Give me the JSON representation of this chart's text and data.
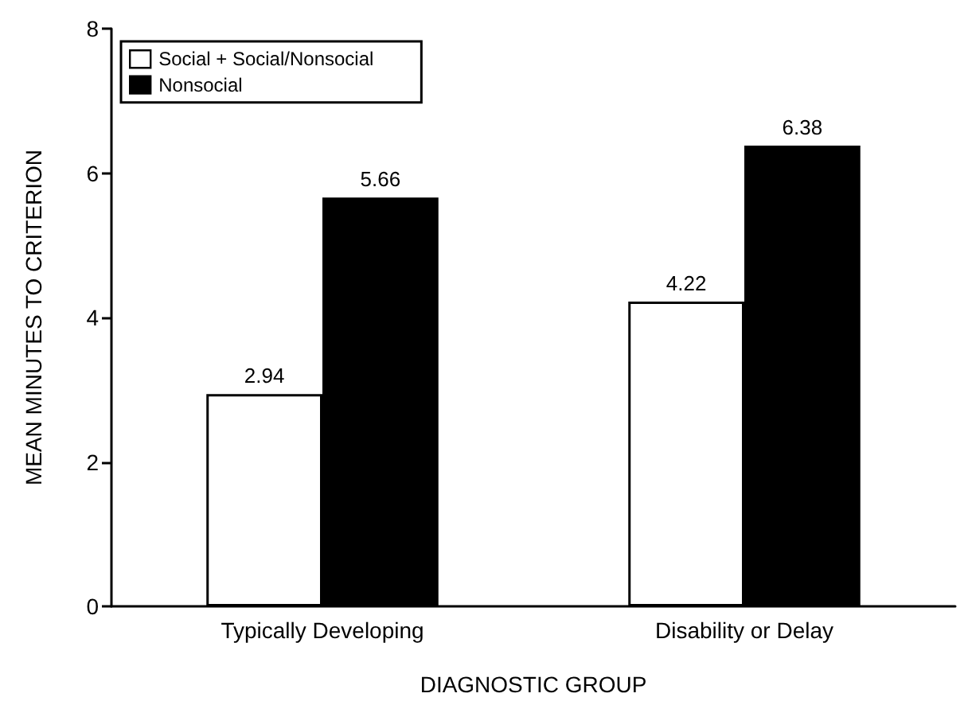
{
  "chart_data": {
    "type": "bar",
    "xlabel": "DIAGNOSTIC GROUP",
    "ylabel": "MEAN MINUTES TO CRITERION",
    "categories": [
      "Typically Developing",
      "Disability or Delay"
    ],
    "series": [
      {
        "name": "Social + Social/Nonsocial",
        "color": "#ffffff",
        "values": [
          2.94,
          4.22
        ]
      },
      {
        "name": "Nonsocial",
        "color": "#000000",
        "values": [
          5.66,
          6.38
        ]
      }
    ],
    "ylim": [
      0,
      8
    ],
    "yticks": [
      0,
      2,
      4,
      6,
      8
    ],
    "data_labels": true,
    "legend": "top left",
    "grid": false
  }
}
